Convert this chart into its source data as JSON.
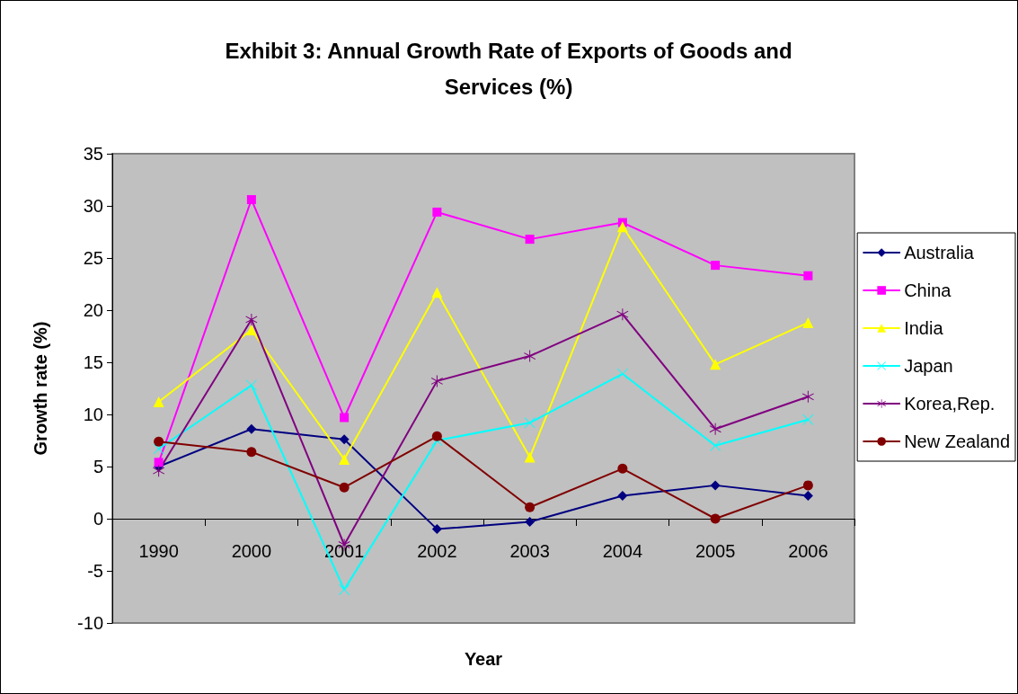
{
  "chart_data": {
    "type": "line",
    "title": "Exhibit 3: Annual Growth Rate of Exports of Goods and\nServices (%)",
    "xlabel": "Year",
    "ylabel": "Growth rate (%)",
    "categories": [
      "1990",
      "2000",
      "2001",
      "2002",
      "2003",
      "2004",
      "2005",
      "2006"
    ],
    "ylim": [
      -10,
      35
    ],
    "yticks": [
      -10,
      -5,
      0,
      5,
      10,
      15,
      20,
      25,
      30,
      35
    ],
    "legend": "right",
    "line_style": "solid",
    "series": [
      {
        "name": "Australia",
        "color": "#000080",
        "marker": "diamond",
        "values": [
          5.0,
          8.6,
          7.6,
          -1.0,
          -0.3,
          2.2,
          3.2,
          2.2
        ]
      },
      {
        "name": "China",
        "color": "#ff00ff",
        "marker": "square",
        "values": [
          5.4,
          30.6,
          9.7,
          29.4,
          26.8,
          28.4,
          24.3,
          23.3
        ]
      },
      {
        "name": "India",
        "color": "#ffff00",
        "marker": "triangle",
        "values": [
          11.2,
          18.1,
          5.7,
          21.7,
          5.9,
          28.0,
          14.8,
          18.8
        ]
      },
      {
        "name": "Japan",
        "color": "#00ffff",
        "marker": "cross",
        "values": [
          6.7,
          12.8,
          -6.8,
          7.5,
          9.2,
          13.9,
          7.0,
          9.5
        ]
      },
      {
        "name": "Korea,Rep.",
        "color": "#800080",
        "marker": "star",
        "values": [
          4.6,
          19.1,
          -2.5,
          13.2,
          15.6,
          19.6,
          8.6,
          11.7
        ]
      },
      {
        "name": "New Zealand",
        "color": "#800000",
        "marker": "circle",
        "values": [
          7.4,
          6.4,
          3.0,
          7.9,
          1.1,
          4.8,
          0.0,
          3.2
        ]
      }
    ]
  }
}
